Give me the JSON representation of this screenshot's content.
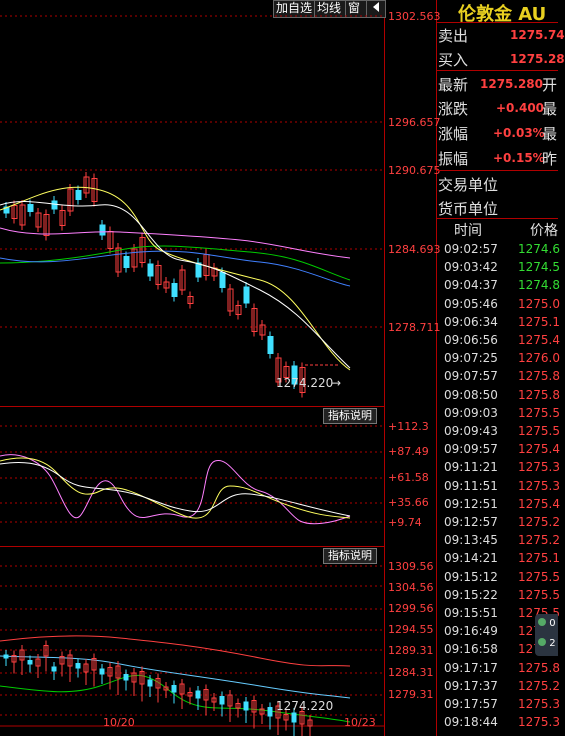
{
  "toolbar": {
    "add_watch": "加自选",
    "toggle_avg": "均线",
    "window": "窗",
    "back_icon": "back-arrow-icon"
  },
  "main_chart": {
    "y_labels": [
      "1302.563",
      "1296.657",
      "1290.675",
      "1284.693",
      "1278.711"
    ],
    "last_low_label": "1274.220",
    "x_labels": [
      "10/20",
      "10/23"
    ]
  },
  "indicator1": {
    "button": "指标说明",
    "y_labels": [
      "+112.3",
      "+87.49",
      "+61.58",
      "+35.66",
      "+9.74"
    ]
  },
  "indicator2": {
    "button": "指标说明",
    "y_labels": [
      "1309.56",
      "1304.56",
      "1299.56",
      "1294.55",
      "1289.31",
      "1284.31",
      "1279.31"
    ],
    "low_label": "1274.220"
  },
  "quote": {
    "title": "伦敦金 AU",
    "sell_label": "卖出",
    "sell_value": "1275.74",
    "buy_label": "买入",
    "buy_value": "1275.28",
    "latest_label": "最新",
    "latest_value": "1275.280",
    "latest_suffix": "开",
    "change_label": "涨跌",
    "change_value": "+0.400",
    "change_suffix": "最",
    "pct_label": "涨幅",
    "pct_value": "+0.03%",
    "pct_suffix": "最",
    "amp_label": "振幅",
    "amp_value": "+0.15%",
    "amp_suffix": "昨",
    "unit_label": "交易单位",
    "currency_label": "货币单位"
  },
  "ticks": {
    "header_time": "时间",
    "header_price": "价格",
    "rows": [
      {
        "time": "09:02:57",
        "price": "1274.6",
        "color": "#33dd33"
      },
      {
        "time": "09:03:42",
        "price": "1274.5",
        "color": "#33dd33"
      },
      {
        "time": "09:04:37",
        "price": "1274.8",
        "color": "#33dd33"
      },
      {
        "time": "09:05:46",
        "price": "1275.0",
        "color": "#ff4040"
      },
      {
        "time": "09:06:34",
        "price": "1275.1",
        "color": "#ff4040"
      },
      {
        "time": "09:06:56",
        "price": "1275.4",
        "color": "#ff4040"
      },
      {
        "time": "09:07:25",
        "price": "1276.0",
        "color": "#ff4040"
      },
      {
        "time": "09:07:57",
        "price": "1275.8",
        "color": "#ff4040"
      },
      {
        "time": "09:08:50",
        "price": "1275.8",
        "color": "#ff4040"
      },
      {
        "time": "09:09:03",
        "price": "1275.5",
        "color": "#ff4040"
      },
      {
        "time": "09:09:43",
        "price": "1275.5",
        "color": "#ff4040"
      },
      {
        "time": "09:09:57",
        "price": "1275.4",
        "color": "#ff4040"
      },
      {
        "time": "09:11:21",
        "price": "1275.3",
        "color": "#ff4040"
      },
      {
        "time": "09:11:51",
        "price": "1275.3",
        "color": "#ff4040"
      },
      {
        "time": "09:12:51",
        "price": "1275.4",
        "color": "#ff4040"
      },
      {
        "time": "09:12:57",
        "price": "1275.2",
        "color": "#ff4040"
      },
      {
        "time": "09:13:45",
        "price": "1275.2",
        "color": "#ff4040"
      },
      {
        "time": "09:14:21",
        "price": "1275.1",
        "color": "#ff4040"
      },
      {
        "time": "09:15:12",
        "price": "1275.5",
        "color": "#ff4040"
      },
      {
        "time": "09:15:22",
        "price": "1275.5",
        "color": "#ff4040"
      },
      {
        "time": "09:15:51",
        "price": "1275.5",
        "color": "#ff4040"
      },
      {
        "time": "09:16:49",
        "price": "127",
        "color": "#ff4040"
      },
      {
        "time": "09:16:58",
        "price": "127",
        "color": "#ff4040"
      },
      {
        "time": "09:17:17",
        "price": "1275.8",
        "color": "#ff4040"
      },
      {
        "time": "09:17:37",
        "price": "1275.2",
        "color": "#ff4040"
      },
      {
        "time": "09:17:57",
        "price": "1275.3",
        "color": "#ff4040"
      },
      {
        "time": "09:18:44",
        "price": "1275.3",
        "color": "#ff4040"
      }
    ]
  },
  "popup": {
    "line1": "0",
    "line2": "2"
  }
}
